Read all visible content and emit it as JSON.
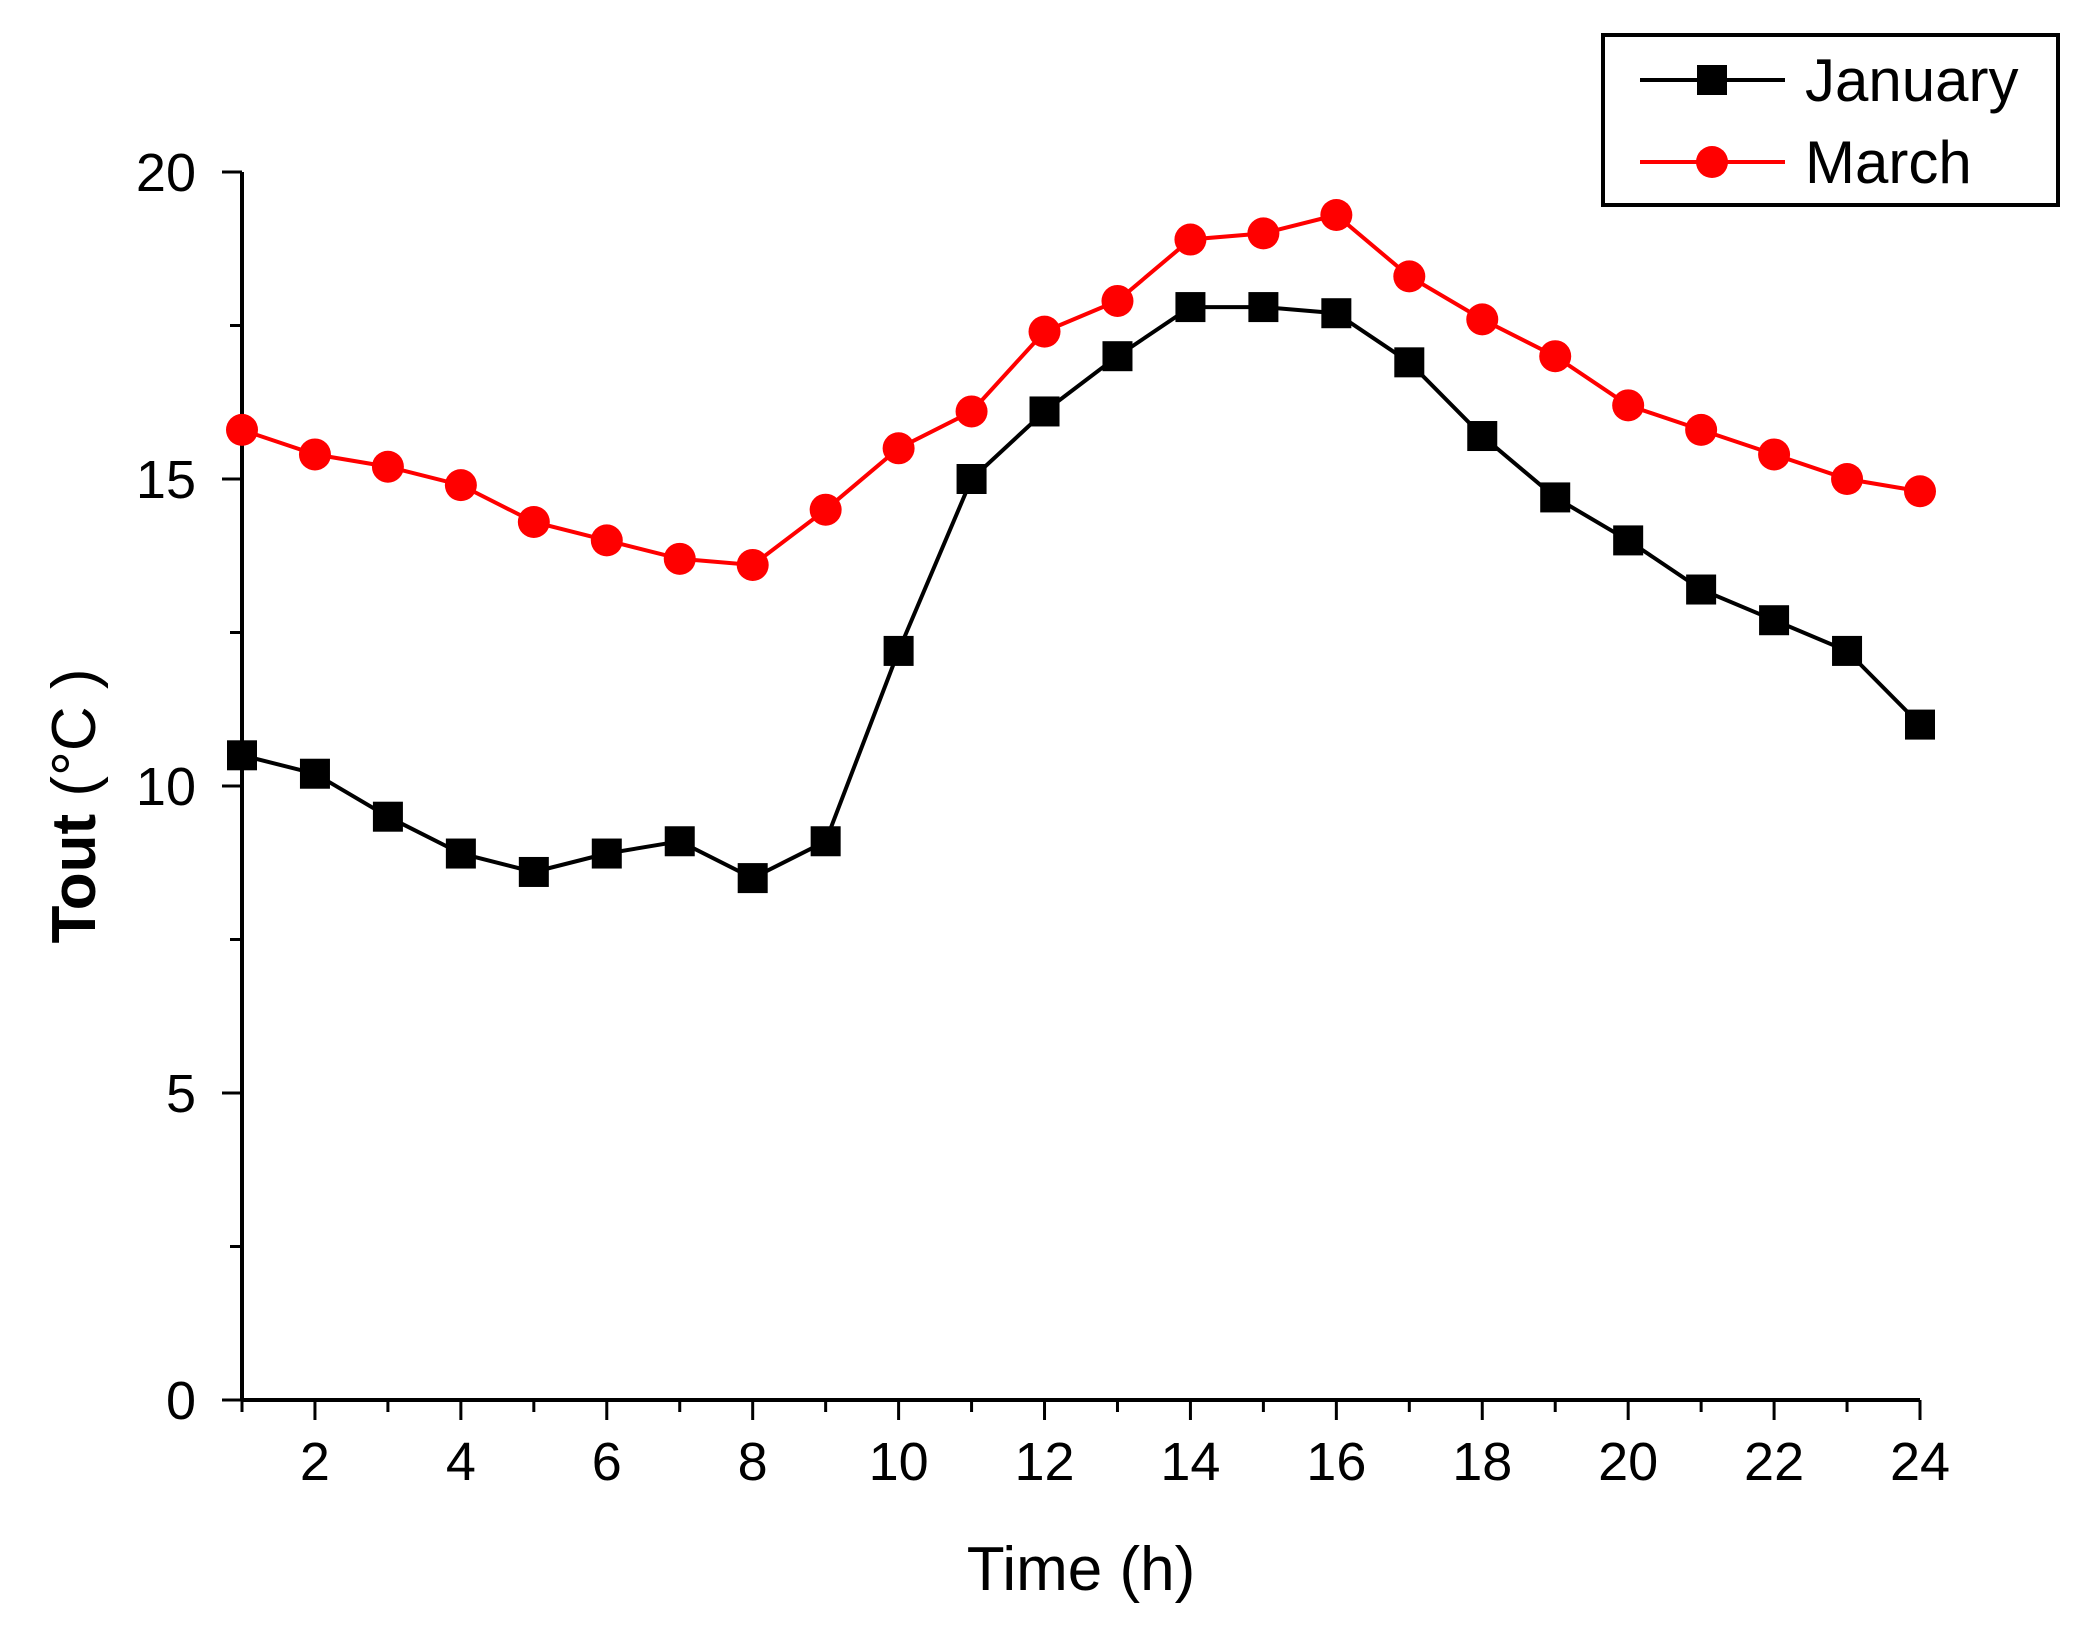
{
  "chart_data": {
    "type": "line",
    "title": "",
    "xlabel": "Time (h)",
    "ylabel": {
      "bold": "Tout",
      "unit": " (°C )"
    },
    "xlim": [
      1,
      24
    ],
    "ylim": [
      0,
      20
    ],
    "xticks": [
      2,
      4,
      6,
      8,
      10,
      12,
      14,
      16,
      18,
      20,
      22,
      24
    ],
    "yticks": [
      0,
      5,
      10,
      15,
      20
    ],
    "grid": false,
    "legend_position": "top-right",
    "x": [
      1,
      2,
      3,
      4,
      5,
      6,
      7,
      8,
      9,
      10,
      11,
      12,
      13,
      14,
      15,
      16,
      17,
      18,
      19,
      20,
      21,
      22,
      23,
      24
    ],
    "series": [
      {
        "name": "January",
        "color": "#000000",
        "marker": "square",
        "values": [
          10.5,
          10.2,
          9.5,
          8.9,
          8.6,
          8.9,
          9.1,
          8.5,
          9.1,
          12.2,
          15.0,
          16.1,
          17.0,
          17.8,
          17.8,
          17.7,
          16.9,
          15.7,
          14.7,
          14.0,
          13.2,
          12.7,
          12.2,
          11.0
        ]
      },
      {
        "name": "March",
        "color": "#ff0000",
        "marker": "circle",
        "values": [
          15.8,
          15.4,
          15.2,
          14.9,
          14.3,
          14.0,
          13.7,
          13.6,
          14.5,
          15.5,
          16.1,
          17.4,
          17.9,
          18.9,
          19.0,
          19.3,
          18.3,
          17.6,
          17.0,
          16.2,
          15.8,
          15.4,
          15.0,
          14.8
        ]
      }
    ]
  }
}
